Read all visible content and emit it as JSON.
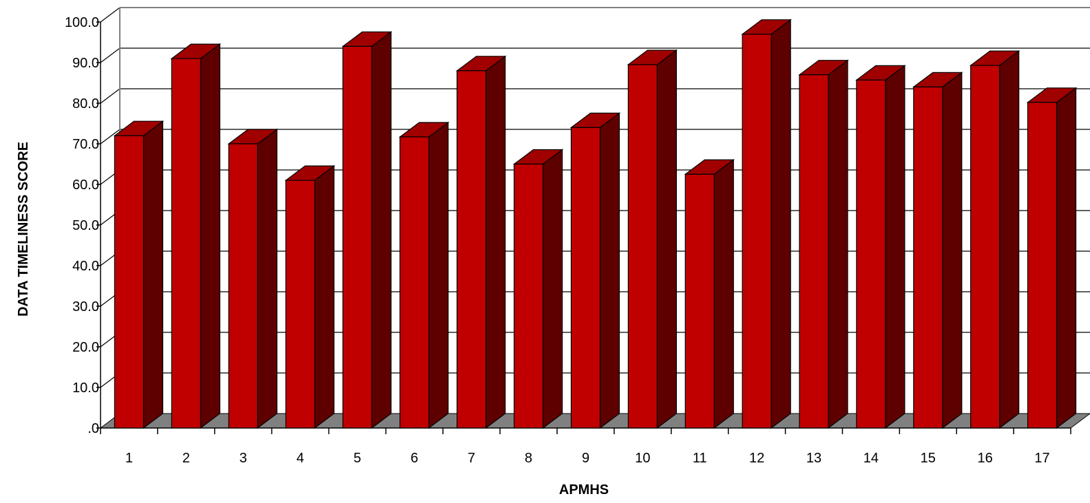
{
  "chart_data": {
    "type": "bar",
    "categories": [
      "1",
      "2",
      "3",
      "4",
      "5",
      "6",
      "7",
      "8",
      "9",
      "10",
      "11",
      "12",
      "13",
      "14",
      "15",
      "16",
      "17"
    ],
    "values": [
      72.0,
      91.0,
      70.0,
      61.0,
      94.0,
      71.7,
      88.0,
      65.0,
      74.0,
      89.5,
      62.5,
      97.0,
      87.0,
      85.7,
      84.0,
      89.3,
      80.2
    ],
    "ylabel": "DATA TIMELINESS SCORE",
    "xlabel": "APMHS",
    "ylim": [
      0,
      100
    ],
    "yticks": [
      ".0",
      "10.0",
      "20.0",
      "30.0",
      "40.0",
      "50.0",
      "60.0",
      "70.0",
      "80.0",
      "90.0",
      "100.0"
    ],
    "grid": true,
    "style": "3d",
    "colors": {
      "bar_front": "#c00000",
      "bar_side": "#5e0000",
      "bar_top": "#a00000",
      "floor": "#808080"
    }
  }
}
